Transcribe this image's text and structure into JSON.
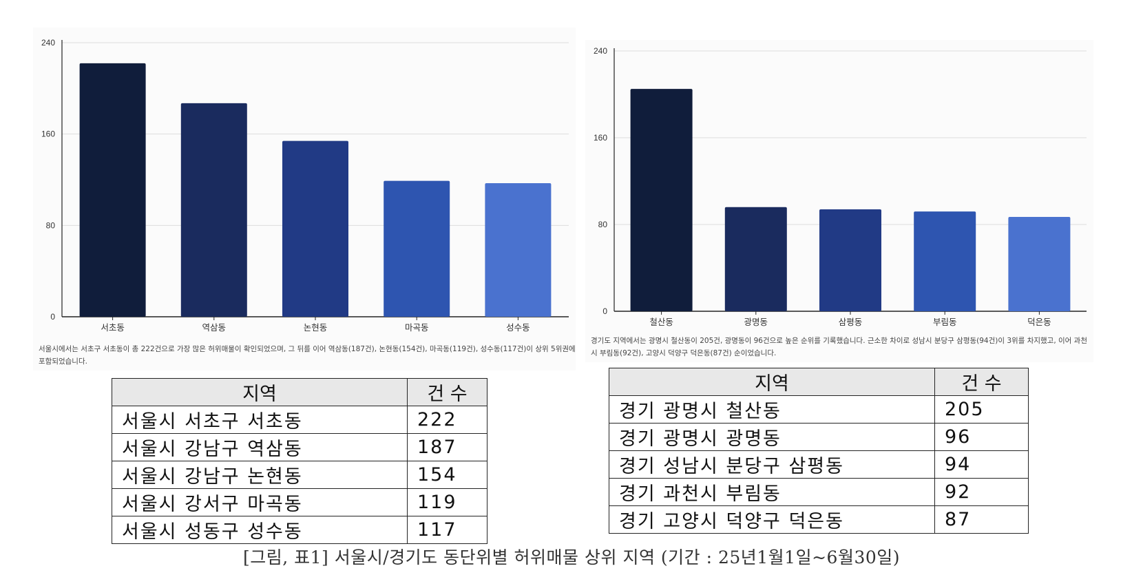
{
  "chart_data": [
    {
      "type": "bar",
      "categories": [
        "서초동",
        "역삼동",
        "논현동",
        "마곡동",
        "성수동"
      ],
      "values": [
        222,
        187,
        154,
        119,
        117
      ],
      "colors": [
        "#101d3b",
        "#1a2b5e",
        "#213a85",
        "#2e55b0",
        "#4a72cf"
      ],
      "yticks": [
        0,
        80,
        160,
        240
      ],
      "ylim": [
        0,
        240
      ],
      "grid": true,
      "description": "서울시에서는 서초구 서초동이 총 222건으로 가장 많은 허위매물이 확인되었으며, 그 뒤를 이어 역삼동(187건), 논현동(154건), 마곡동(119건), 성수동(117건)이 상위 5위권에 포함되었습니다."
    },
    {
      "type": "bar",
      "categories": [
        "철산동",
        "광명동",
        "삼평동",
        "부림동",
        "덕은동"
      ],
      "values": [
        205,
        96,
        94,
        92,
        87
      ],
      "colors": [
        "#101d3b",
        "#1a2b5e",
        "#213a85",
        "#2e55b0",
        "#4a72cf"
      ],
      "yticks": [
        0,
        80,
        160,
        240
      ],
      "ylim": [
        0,
        240
      ],
      "grid": true,
      "description": "경기도 지역에서는 광명시 철산동이 205건, 광명동이 96건으로 높은 순위를 기록했습니다. 근소한 차이로 성남시 분당구 삼평동(94건)이 3위를 차지했고, 이어 과천시 부림동(92건), 고양시 덕양구 덕은동(87건) 순이었습니다."
    }
  ],
  "tables": {
    "seoul": {
      "headers": [
        "지역",
        "건 수"
      ],
      "rows": [
        [
          "서울시 서초구 서초동",
          "222"
        ],
        [
          "서울시 강남구 역삼동",
          "187"
        ],
        [
          "서울시 강남구 논현동",
          "154"
        ],
        [
          "서울시 강서구 마곡동",
          "119"
        ],
        [
          "서울시 성동구 성수동",
          "117"
        ]
      ]
    },
    "gyeonggi": {
      "headers": [
        "지역",
        "건 수"
      ],
      "rows": [
        [
          "경기 광명시 철산동",
          "205"
        ],
        [
          "경기 광명시 광명동",
          "96"
        ],
        [
          "경기 성남시 분당구 삼평동",
          "94"
        ],
        [
          "경기 과천시 부림동",
          "92"
        ],
        [
          "경기 고양시 덕양구 덕은동",
          "87"
        ]
      ]
    }
  },
  "caption": "[그림, 표1] 서울시/경기도 동단위별 허위매물 상위 지역 (기간 : 25년1월1일~6월30일)"
}
